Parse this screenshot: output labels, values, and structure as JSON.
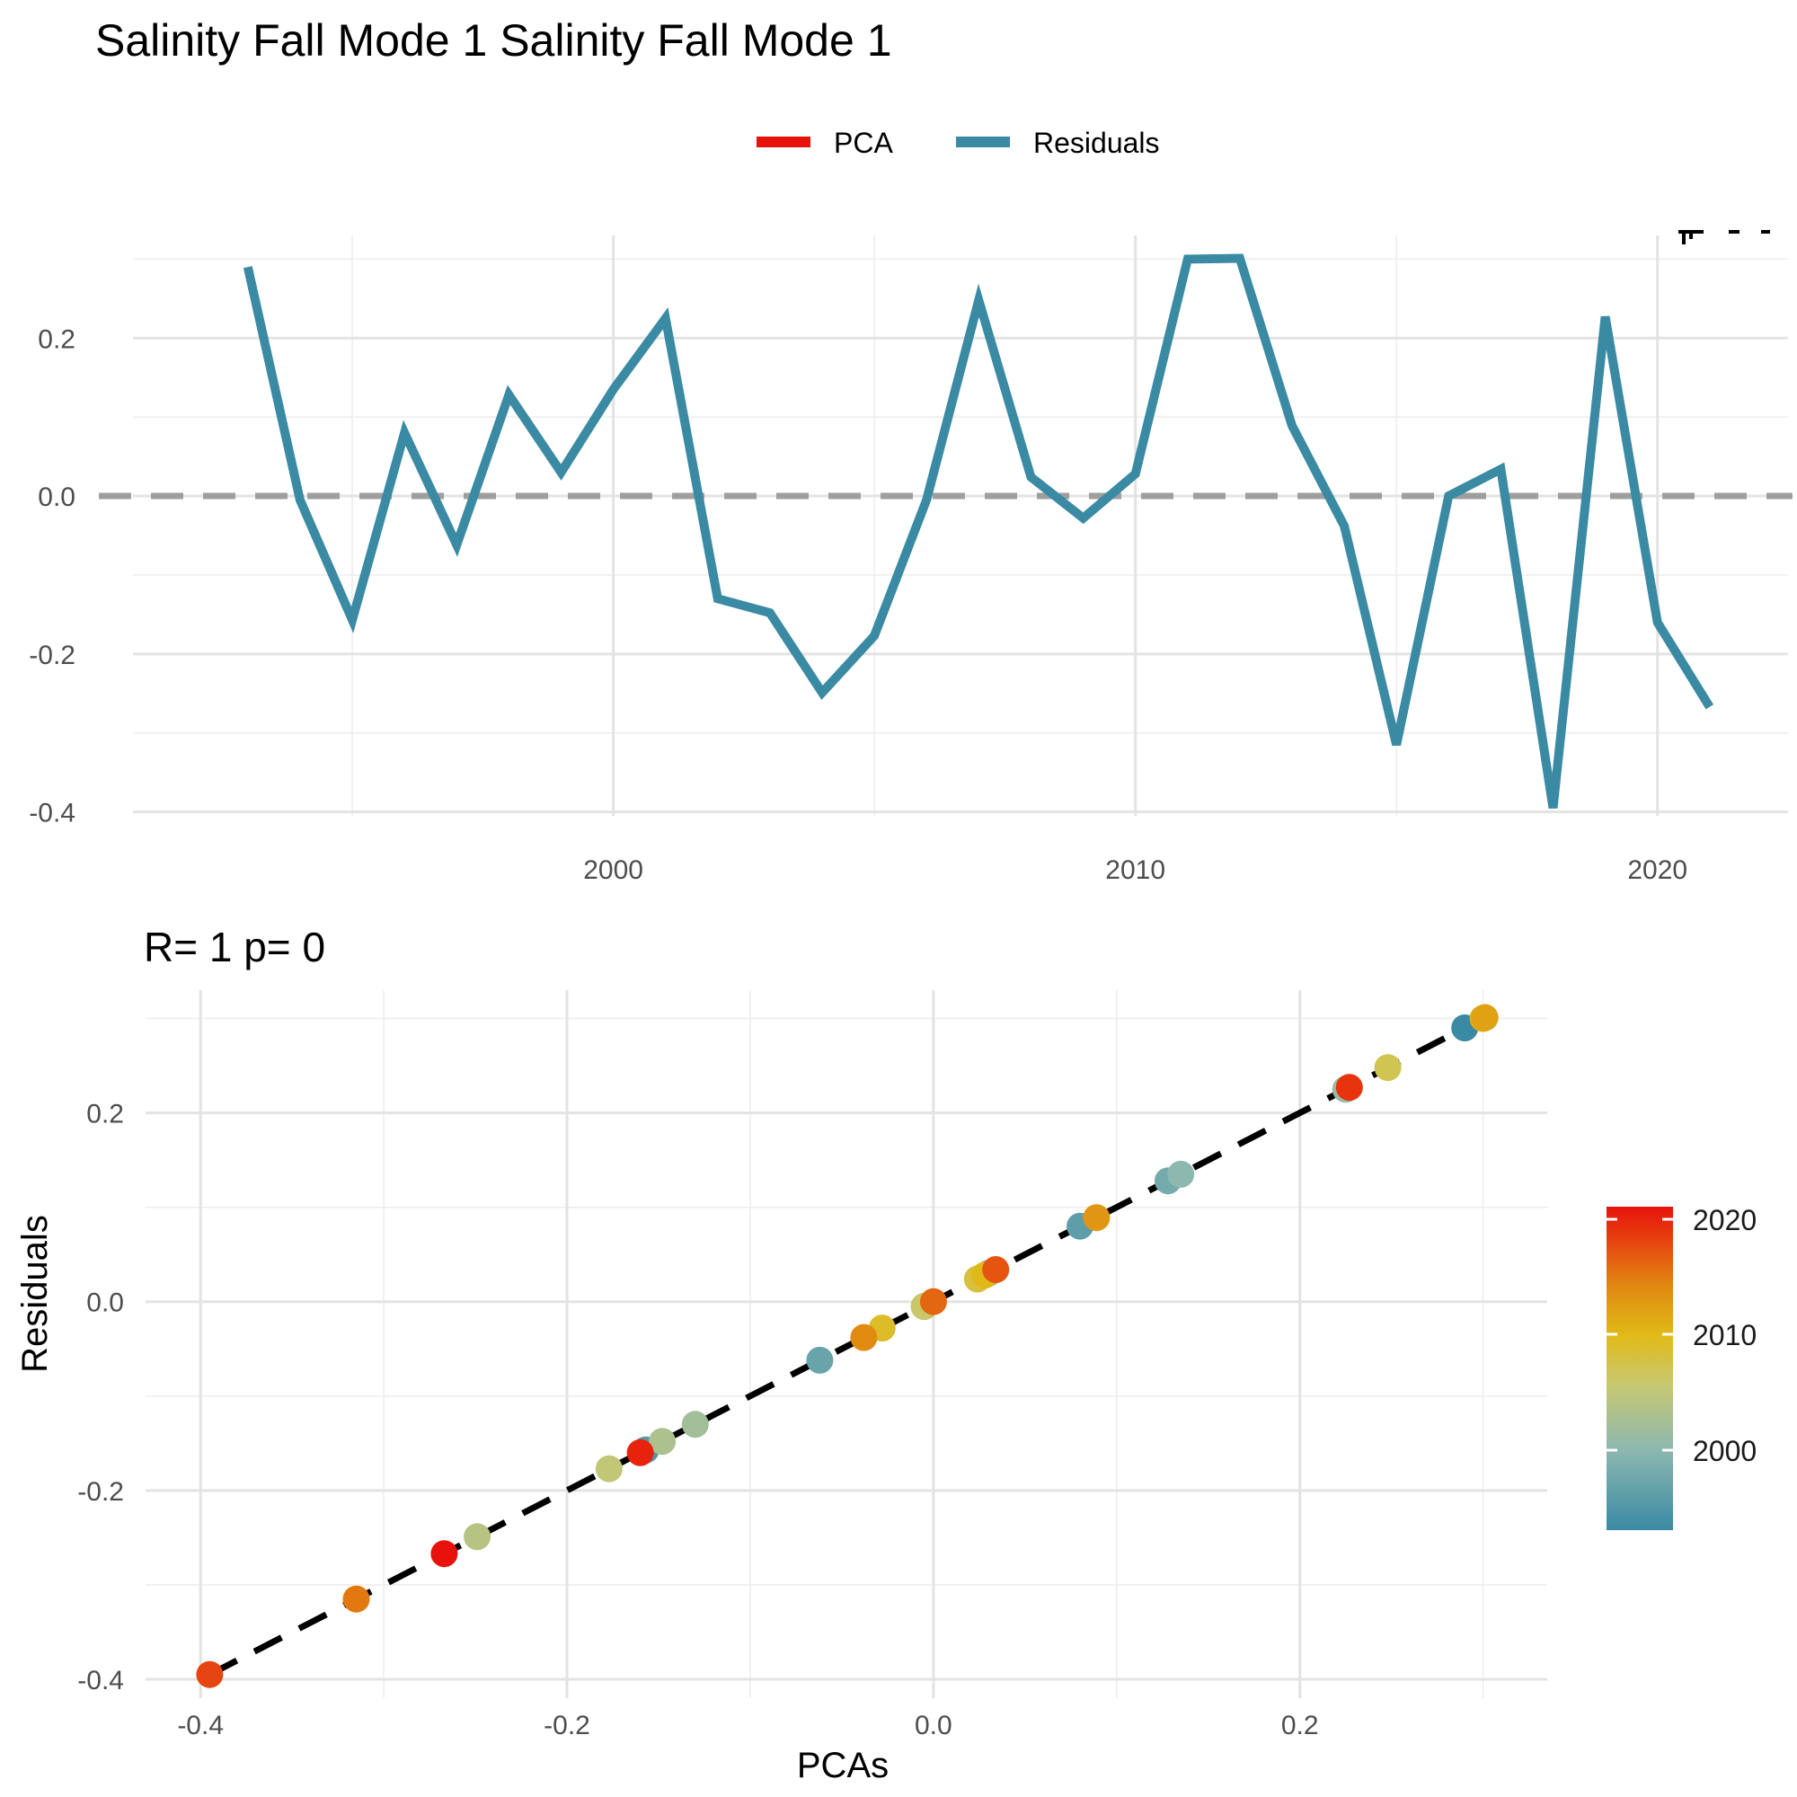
{
  "title": "Salinity Fall Mode 1 Salinity Fall Mode 1",
  "legend": [
    {
      "label": "PCA",
      "color": "#e8120c"
    },
    {
      "label": "Residuals",
      "color": "#3a8aa3"
    }
  ],
  "top_panel": {
    "y_ticks": [
      "0.2",
      "0.0",
      "-0.2",
      "-0.4"
    ],
    "x_ticks": [
      "2000",
      "2010",
      "2020"
    ]
  },
  "bottom_panel": {
    "subtitle": "R= 1  p= 0",
    "x_title": "PCAs",
    "y_title": "Residuals",
    "x_ticks": [
      "-0.4",
      "-0.2",
      "0.0",
      "0.2"
    ],
    "y_ticks": [
      "0.2",
      "0.0",
      "-0.2",
      "-0.4"
    ],
    "colorbar_ticks": [
      "2020",
      "2010",
      "2000"
    ]
  },
  "chart_data": [
    {
      "type": "line",
      "xlabel": "",
      "ylabel": "",
      "xlim": [
        1990.8,
        2022.5
      ],
      "ylim": [
        -0.405,
        0.33
      ],
      "reference_line": {
        "y": 0,
        "style": "dashed",
        "color": "#999999"
      },
      "series": [
        {
          "name": "Residuals",
          "color": "#3a8aa3",
          "x": [
            1993,
            1994,
            1995,
            1996,
            1997,
            1998,
            1999,
            2000,
            2001,
            2002,
            2003,
            2004,
            2005,
            2006,
            2007,
            2008,
            2009,
            2010,
            2011,
            2012,
            2013,
            2014,
            2015,
            2016,
            2017,
            2018,
            2019,
            2020,
            2021
          ],
          "y": [
            0.29,
            -0.005,
            -0.157,
            0.08,
            -0.062,
            0.128,
            0.03,
            0.135,
            0.225,
            -0.13,
            -0.148,
            -0.249,
            -0.177,
            -0.005,
            0.248,
            0.024,
            -0.028,
            0.028,
            0.3,
            0.301,
            0.089,
            -0.038,
            -0.315,
            0.0,
            0.034,
            -0.395,
            0.227,
            -0.16,
            -0.267
          ]
        }
      ]
    },
    {
      "type": "scatter",
      "xlabel": "PCAs",
      "ylabel": "Residuals",
      "title": "R= 1  p= 0",
      "xlim": [
        -0.43,
        0.335
      ],
      "ylim": [
        -0.42,
        0.33
      ],
      "fit_line": {
        "x": [
          -0.395,
          0.301
        ],
        "y": [
          -0.395,
          0.301
        ],
        "style": "dashed",
        "color": "#000000"
      },
      "color_scale": {
        "var": "year",
        "min": 1993,
        "max": 2021,
        "colors": [
          "#3a8aa3",
          "#8db8b0",
          "#c8c870",
          "#e0bb18",
          "#e08a10",
          "#e64a10",
          "#e8120c"
        ]
      },
      "points": {
        "x": [
          0.29,
          -0.005,
          -0.157,
          0.08,
          -0.062,
          0.128,
          0.03,
          0.135,
          0.225,
          -0.13,
          -0.148,
          -0.249,
          -0.177,
          -0.005,
          0.248,
          0.024,
          -0.028,
          0.028,
          0.3,
          0.301,
          0.089,
          -0.038,
          -0.315,
          0.0,
          0.034,
          -0.395,
          0.227,
          -0.16,
          -0.267
        ],
        "y": [
          0.29,
          -0.005,
          -0.157,
          0.08,
          -0.062,
          0.128,
          0.03,
          0.135,
          0.225,
          -0.13,
          -0.148,
          -0.249,
          -0.177,
          -0.005,
          0.248,
          0.024,
          -0.028,
          0.028,
          0.3,
          0.301,
          0.089,
          -0.038,
          -0.315,
          0.0,
          0.034,
          -0.395,
          0.227,
          -0.16,
          -0.267
        ],
        "year": [
          1993,
          1994,
          1995,
          1996,
          1997,
          1998,
          1999,
          2000,
          2001,
          2002,
          2003,
          2004,
          2005,
          2006,
          2007,
          2008,
          2009,
          2010,
          2011,
          2012,
          2013,
          2014,
          2015,
          2016,
          2017,
          2018,
          2019,
          2020,
          2021
        ]
      }
    }
  ]
}
